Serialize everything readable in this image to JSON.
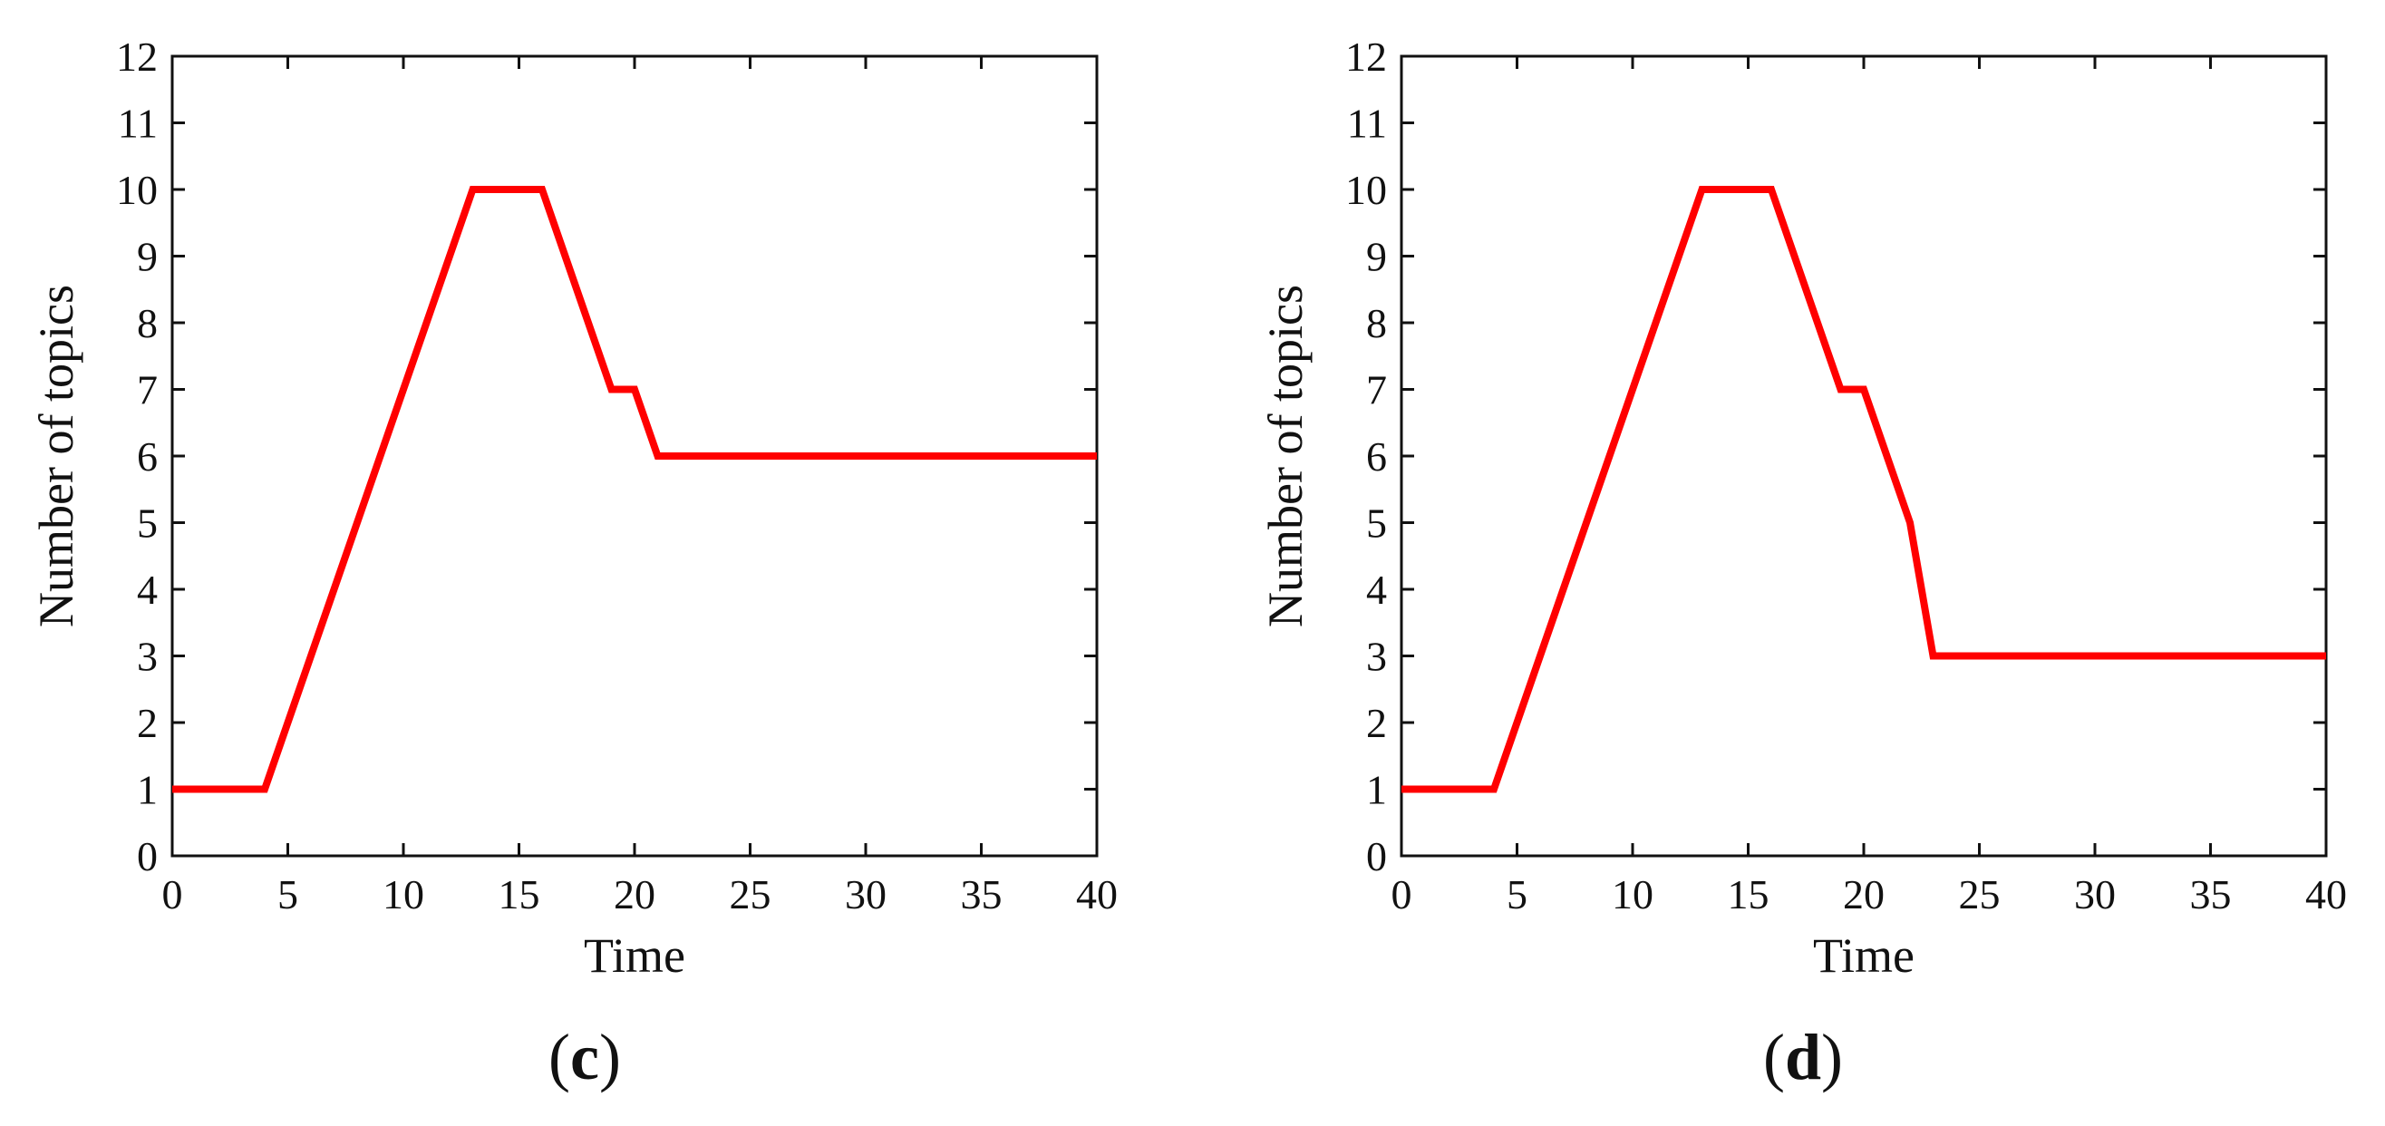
{
  "line_color": "#ff0000",
  "axis_color": "#111111",
  "chart_data": [
    {
      "type": "line",
      "panel": "c",
      "xlabel": "Time",
      "ylabel": "Number of topics",
      "xlim": [
        0,
        40
      ],
      "ylim": [
        0,
        12
      ],
      "xticks": [
        0,
        5,
        10,
        15,
        20,
        25,
        30,
        35,
        40
      ],
      "yticks": [
        0,
        1,
        2,
        3,
        4,
        5,
        6,
        7,
        8,
        9,
        10,
        11,
        12
      ],
      "grid": false,
      "series": [
        {
          "x": [
            0,
            4,
            13,
            16,
            19,
            20,
            21,
            40
          ],
          "y": [
            1,
            1,
            10,
            10,
            7,
            7,
            6,
            6
          ]
        }
      ]
    },
    {
      "type": "line",
      "panel": "d",
      "xlabel": "Time",
      "ylabel": "Number of topics",
      "xlim": [
        0,
        40
      ],
      "ylim": [
        0,
        12
      ],
      "xticks": [
        0,
        5,
        10,
        15,
        20,
        25,
        30,
        35,
        40
      ],
      "yticks": [
        0,
        1,
        2,
        3,
        4,
        5,
        6,
        7,
        8,
        9,
        10,
        11,
        12
      ],
      "grid": false,
      "series": [
        {
          "x": [
            0,
            4,
            13,
            16,
            19,
            20,
            22,
            23,
            40
          ],
          "y": [
            1,
            1,
            10,
            10,
            7,
            7,
            5,
            3,
            3
          ]
        }
      ]
    }
  ]
}
